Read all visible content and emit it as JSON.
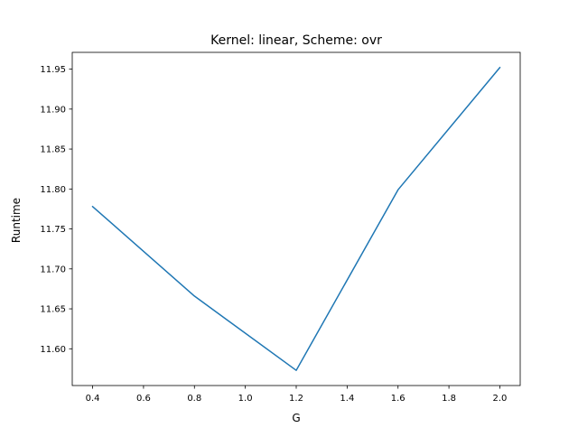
{
  "chart_data": {
    "type": "line",
    "title": "Kernel: linear, Scheme: ovr",
    "xlabel": "G",
    "ylabel": "Runtime",
    "x": [
      0.4,
      0.8,
      1.2,
      1.6,
      2.0
    ],
    "series": [
      {
        "values": [
          11.778,
          11.666,
          11.573,
          11.799,
          11.952
        ],
        "color": "#1f77b4"
      }
    ],
    "xlim": [
      0.32,
      2.08
    ],
    "ylim": [
      11.554,
      11.971
    ],
    "xticks": [
      0.4,
      0.6,
      0.8,
      1.0,
      1.2,
      1.4,
      1.6,
      1.8,
      2.0
    ],
    "xtick_labels": [
      "0.4",
      "0.6",
      "0.8",
      "1.0",
      "1.2",
      "1.4",
      "1.6",
      "1.8",
      "2.0"
    ],
    "yticks": [
      11.6,
      11.65,
      11.7,
      11.75,
      11.8,
      11.85,
      11.9,
      11.95
    ],
    "ytick_labels": [
      "11.60",
      "11.65",
      "11.70",
      "11.75",
      "11.80",
      "11.85",
      "11.90",
      "11.95"
    ],
    "grid": false,
    "legend": "none"
  }
}
